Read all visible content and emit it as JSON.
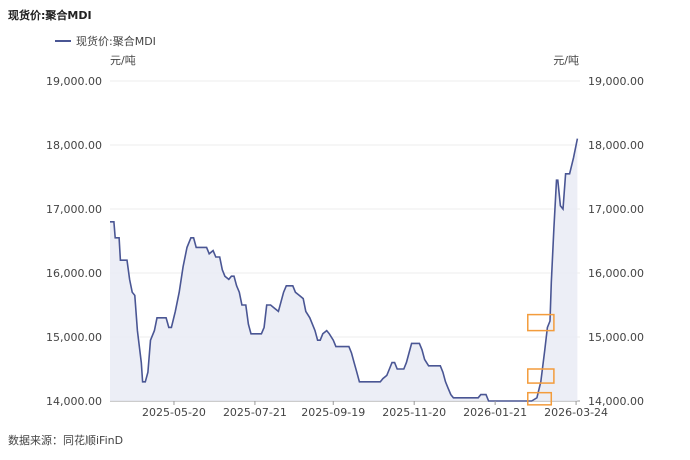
{
  "title": "现货价:聚合MDI",
  "footer": "数据来源：同花顺iFinD",
  "colors": {
    "line": "#4a5694",
    "area": "#e9ebf5",
    "highlight": "#f39c3c"
  },
  "chart_data": {
    "type": "area",
    "title": "现货价:聚合MDI",
    "legend": [
      "现货价:聚合MDI"
    ],
    "ylabel_left": "元/吨",
    "ylabel_right": "元/吨",
    "ylim": [
      14000,
      19000
    ],
    "yticks": [
      14000,
      15000,
      16000,
      17000,
      18000,
      19000
    ],
    "ytick_labels": [
      "14,000.00",
      "15,000.00",
      "16,000.00",
      "17,000.00",
      "18,000.00",
      "19,000.00"
    ],
    "xticks": [
      "2025-05-20",
      "2025-07-21",
      "2025-09-19",
      "2025-11-20",
      "2026-01-21",
      "2026-03-24"
    ],
    "xlim": [
      "2025-04-01",
      "2026-03-27"
    ],
    "grid": true,
    "legend_position": "top-left",
    "highlights": [
      {
        "date_from": "2026-02-15",
        "date_to": "2026-03-07",
        "value_low": 15100,
        "value_high": 15350
      },
      {
        "date_from": "2026-02-15",
        "date_to": "2026-03-07",
        "value_low": 14280,
        "value_high": 14500
      },
      {
        "date_from": "2026-02-15",
        "date_to": "2026-03-05",
        "value_low": 13940,
        "value_high": 14130
      }
    ],
    "series": [
      {
        "name": "现货价:聚合MDI",
        "points": [
          [
            "2025-04-01",
            16800
          ],
          [
            "2025-04-04",
            16800
          ],
          [
            "2025-04-05",
            16550
          ],
          [
            "2025-04-08",
            16550
          ],
          [
            "2025-04-09",
            16200
          ],
          [
            "2025-04-14",
            16200
          ],
          [
            "2025-04-16",
            15900
          ],
          [
            "2025-04-18",
            15700
          ],
          [
            "2025-04-20",
            15650
          ],
          [
            "2025-04-22",
            15100
          ],
          [
            "2025-04-25",
            14600
          ],
          [
            "2025-04-26",
            14300
          ],
          [
            "2025-04-28",
            14300
          ],
          [
            "2025-04-30",
            14450
          ],
          [
            "2025-05-02",
            14950
          ],
          [
            "2025-05-05",
            15100
          ],
          [
            "2025-05-07",
            15300
          ],
          [
            "2025-05-14",
            15300
          ],
          [
            "2025-05-16",
            15150
          ],
          [
            "2025-05-18",
            15150
          ],
          [
            "2025-05-21",
            15400
          ],
          [
            "2025-05-24",
            15700
          ],
          [
            "2025-05-27",
            16100
          ],
          [
            "2025-05-30",
            16400
          ],
          [
            "2025-06-02",
            16550
          ],
          [
            "2025-06-04",
            16550
          ],
          [
            "2025-06-06",
            16400
          ],
          [
            "2025-06-14",
            16400
          ],
          [
            "2025-06-16",
            16300
          ],
          [
            "2025-06-19",
            16350
          ],
          [
            "2025-06-21",
            16250
          ],
          [
            "2025-06-24",
            16250
          ],
          [
            "2025-06-26",
            16050
          ],
          [
            "2025-06-28",
            15950
          ],
          [
            "2025-07-01",
            15900
          ],
          [
            "2025-07-03",
            15950
          ],
          [
            "2025-07-05",
            15950
          ],
          [
            "2025-07-07",
            15800
          ],
          [
            "2025-07-09",
            15700
          ],
          [
            "2025-07-11",
            15500
          ],
          [
            "2025-07-14",
            15500
          ],
          [
            "2025-07-16",
            15200
          ],
          [
            "2025-07-18",
            15050
          ],
          [
            "2025-07-26",
            15050
          ],
          [
            "2025-07-28",
            15150
          ],
          [
            "2025-07-30",
            15500
          ],
          [
            "2025-08-02",
            15500
          ],
          [
            "2025-08-05",
            15450
          ],
          [
            "2025-08-08",
            15400
          ],
          [
            "2025-08-10",
            15550
          ],
          [
            "2025-08-12",
            15700
          ],
          [
            "2025-08-14",
            15800
          ],
          [
            "2025-08-19",
            15800
          ],
          [
            "2025-08-21",
            15700
          ],
          [
            "2025-08-24",
            15650
          ],
          [
            "2025-08-27",
            15600
          ],
          [
            "2025-08-29",
            15400
          ],
          [
            "2025-09-01",
            15300
          ],
          [
            "2025-09-03",
            15200
          ],
          [
            "2025-09-05",
            15100
          ],
          [
            "2025-09-07",
            14950
          ],
          [
            "2025-09-09",
            14950
          ],
          [
            "2025-09-11",
            15050
          ],
          [
            "2025-09-14",
            15100
          ],
          [
            "2025-09-16",
            15050
          ],
          [
            "2025-09-19",
            14950
          ],
          [
            "2025-09-21",
            14850
          ],
          [
            "2025-10-01",
            14850
          ],
          [
            "2025-10-03",
            14750
          ],
          [
            "2025-10-05",
            14600
          ],
          [
            "2025-10-07",
            14450
          ],
          [
            "2025-10-09",
            14300
          ],
          [
            "2025-10-11",
            14300
          ],
          [
            "2025-10-25",
            14300
          ],
          [
            "2025-10-27",
            14350
          ],
          [
            "2025-10-30",
            14400
          ],
          [
            "2025-11-01",
            14500
          ],
          [
            "2025-11-03",
            14600
          ],
          [
            "2025-11-05",
            14600
          ],
          [
            "2025-11-07",
            14500
          ],
          [
            "2025-11-12",
            14500
          ],
          [
            "2025-11-14",
            14600
          ],
          [
            "2025-11-16",
            14750
          ],
          [
            "2025-11-18",
            14900
          ],
          [
            "2025-11-24",
            14900
          ],
          [
            "2025-11-26",
            14800
          ],
          [
            "2025-11-28",
            14650
          ],
          [
            "2025-12-01",
            14550
          ],
          [
            "2025-12-10",
            14550
          ],
          [
            "2025-12-12",
            14450
          ],
          [
            "2025-12-14",
            14300
          ],
          [
            "2025-12-16",
            14200
          ],
          [
            "2025-12-18",
            14100
          ],
          [
            "2025-12-20",
            14050
          ],
          [
            "2026-01-08",
            14050
          ],
          [
            "2026-01-10",
            14100
          ],
          [
            "2026-01-14",
            14100
          ],
          [
            "2026-01-16",
            14000
          ],
          [
            "2026-02-18",
            14000
          ],
          [
            "2026-02-22",
            14050
          ],
          [
            "2026-02-25",
            14300
          ],
          [
            "2026-02-28",
            14800
          ],
          [
            "2026-03-02",
            15150
          ],
          [
            "2026-03-04",
            15250
          ],
          [
            "2026-03-05",
            15850
          ],
          [
            "2026-03-07",
            16700
          ],
          [
            "2026-03-09",
            17450
          ],
          [
            "2026-03-10",
            17450
          ],
          [
            "2026-03-12",
            17050
          ],
          [
            "2026-03-14",
            17000
          ],
          [
            "2026-03-16",
            17550
          ],
          [
            "2026-03-19",
            17550
          ],
          [
            "2026-03-22",
            17800
          ],
          [
            "2026-03-25",
            18100
          ]
        ]
      }
    ]
  }
}
